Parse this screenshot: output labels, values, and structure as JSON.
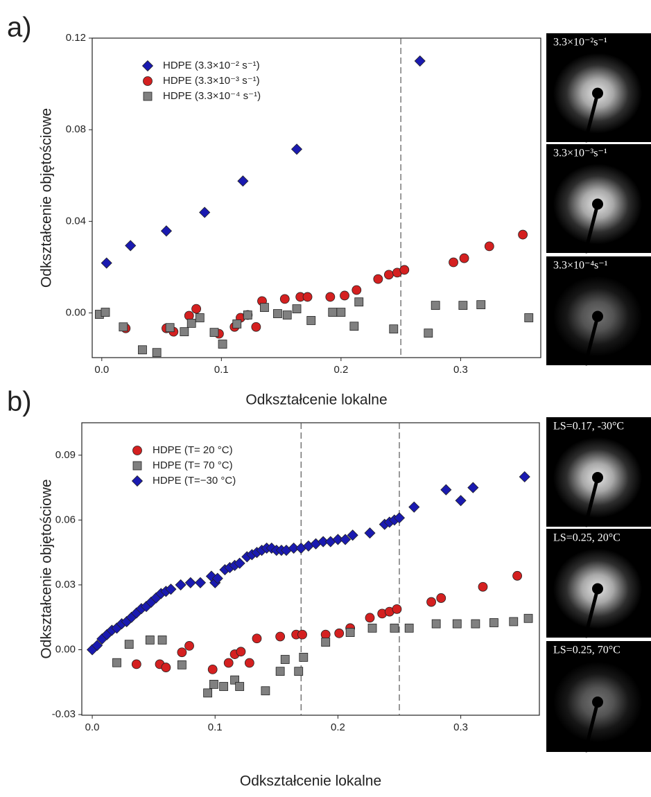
{
  "chart_data": [
    {
      "type": "scatter",
      "panel_label": "a)",
      "xlabel": "Odkształcenie lokalne",
      "ylabel": "Odkształcenie objętościowe",
      "xlim": [
        -0.008,
        0.367
      ],
      "ylim": [
        -0.0195,
        0.12
      ],
      "xticks": [
        {
          "value": 0,
          "label": "0.0"
        },
        0.1,
        0.2,
        0.3
      ],
      "yticks": [
        {
          "value": 0,
          "label": "0.00"
        },
        0.04,
        0.08,
        0.12
      ],
      "legend": "upper left",
      "vlines": [
        0.25
      ],
      "images": [
        "3.3×10⁻²s⁻¹",
        "3.3×10⁻³s⁻¹",
        "3.3×10⁻⁴s⁻¹"
      ],
      "series": [
        {
          "name": "HDPE (3.3×10⁻² s⁻¹)",
          "color": "#1a1ab0",
          "marker": "diamond",
          "x": [
            0.004,
            0.024,
            0.054,
            0.086,
            0.118,
            0.163,
            0.266
          ],
          "values": [
            0.0218,
            0.0294,
            0.0358,
            0.0439,
            0.0576,
            0.0715,
            0.11
          ]
        },
        {
          "name": "HDPE (3.3×10⁻³ s⁻¹)",
          "color": "#d42020",
          "marker": "circle",
          "x": [
            0.02,
            0.054,
            0.06,
            0.073,
            0.079,
            0.098,
            0.111,
            0.116,
            0.122,
            0.129,
            0.134,
            0.153,
            0.166,
            0.172,
            0.191,
            0.203,
            0.213,
            0.231,
            0.24,
            0.247,
            0.253,
            0.294,
            0.303,
            0.324,
            0.352
          ],
          "values": [
            -0.0067,
            -0.0067,
            -0.0082,
            -0.0012,
            0.0018,
            -0.0091,
            -0.0061,
            -0.0021,
            -0.0009,
            -0.0061,
            0.0052,
            0.0061,
            0.007,
            0.007,
            0.007,
            0.0076,
            0.01,
            0.0148,
            0.0167,
            0.0176,
            0.0188,
            0.0221,
            0.0239,
            0.0291,
            0.0342
          ]
        },
        {
          "name": "HDPE (3.3×10⁻⁴ s⁻¹)",
          "color": "#808080",
          "marker": "square",
          "x": [
            -0.002,
            0.003,
            0.018,
            0.034,
            0.046,
            0.057,
            0.069,
            0.075,
            0.082,
            0.094,
            0.101,
            0.113,
            0.122,
            0.136,
            0.147,
            0.155,
            0.163,
            0.175,
            0.193,
            0.2,
            0.211,
            0.215,
            0.244,
            0.273,
            0.279,
            0.302,
            0.317,
            0.357
          ],
          "values": [
            -0.0006,
            0.0003,
            -0.0061,
            -0.0161,
            -0.0173,
            -0.0064,
            -0.0082,
            -0.0045,
            -0.0021,
            -0.0085,
            -0.0136,
            -0.0048,
            -0.0009,
            0.0024,
            -0.0003,
            -0.0009,
            0.0018,
            -0.0033,
            0.0003,
            0.0003,
            -0.0058,
            0.0048,
            -0.007,
            -0.0088,
            0.0033,
            0.0033,
            0.0036,
            -0.0021
          ]
        }
      ]
    },
    {
      "type": "scatter",
      "panel_label": "b)",
      "xlabel": "Odkształcenie lokalne",
      "ylabel": "Odkształcenie objętościowe",
      "xlim": [
        -0.0085,
        0.364
      ],
      "ylim": [
        -0.0303,
        0.105
      ],
      "xticks": [
        {
          "value": 0,
          "label": "0.0"
        },
        0.1,
        0.2,
        0.3
      ],
      "yticks": [
        -0.03,
        {
          "value": 0,
          "label": "0.00"
        },
        0.03,
        0.06,
        0.09
      ],
      "legend": "upper left",
      "vlines": [
        0.17,
        0.25
      ],
      "images": [
        "LS=0.17, -30°C",
        "LS=0.25, 20°C",
        "LS=0.25, 70°C"
      ],
      "series": [
        {
          "name": "HDPE (T= 20 °C)",
          "color": "#d42020",
          "marker": "circle",
          "x": [
            0.036,
            0.055,
            0.06,
            0.073,
            0.079,
            0.098,
            0.111,
            0.116,
            0.121,
            0.128,
            0.134,
            0.153,
            0.166,
            0.171,
            0.19,
            0.201,
            0.21,
            0.226,
            0.236,
            0.242,
            0.248,
            0.276,
            0.284,
            0.318,
            0.346
          ],
          "values": [
            -0.0067,
            -0.0067,
            -0.0082,
            -0.0012,
            0.0018,
            -0.0091,
            -0.0061,
            -0.0021,
            -0.0009,
            -0.0061,
            0.0052,
            0.0061,
            0.007,
            0.007,
            0.007,
            0.0076,
            0.01,
            0.0148,
            0.0167,
            0.0176,
            0.0188,
            0.0221,
            0.0239,
            0.0291,
            0.0342
          ]
        },
        {
          "name": "HDPE (T= 70 °C)",
          "color": "#808080",
          "marker": "square",
          "x": [
            0.02,
            0.03,
            0.047,
            0.057,
            0.073,
            0.094,
            0.099,
            0.107,
            0.116,
            0.12,
            0.141,
            0.153,
            0.157,
            0.168,
            0.172,
            0.19,
            0.21,
            0.228,
            0.246,
            0.258,
            0.28,
            0.297,
            0.312,
            0.327,
            0.343,
            0.355
          ],
          "values": [
            -0.006,
            0.0025,
            0.0045,
            0.0045,
            -0.007,
            -0.02,
            -0.016,
            -0.017,
            -0.014,
            -0.017,
            -0.019,
            -0.01,
            -0.0045,
            -0.01,
            -0.0035,
            0.0035,
            0.008,
            0.01,
            0.01,
            0.01,
            0.012,
            0.012,
            0.012,
            0.0125,
            0.013,
            0.0145
          ]
        },
        {
          "name": "HDPE (T=−30 °C)",
          "color": "#1a1ab0",
          "marker": "diamond",
          "x": [
            0,
            0.004,
            0.008,
            0.012,
            0.016,
            0.02,
            0.024,
            0.028,
            0.032,
            0.036,
            0.04,
            0.044,
            0.048,
            0.052,
            0.056,
            0.06,
            0.064,
            0.072,
            0.08,
            0.088,
            0.097,
            0.1,
            0.102,
            0.108,
            0.112,
            0.116,
            0.12,
            0.126,
            0.13,
            0.134,
            0.138,
            0.142,
            0.146,
            0.15,
            0.154,
            0.158,
            0.164,
            0.17,
            0.176,
            0.182,
            0.188,
            0.194,
            0.2,
            0.206,
            0.212,
            0.226,
            0.238,
            0.242,
            0.246,
            0.25,
            0.262,
            0.288,
            0.3,
            0.31,
            0.352
          ],
          "values": [
            0,
            0.002,
            0.005,
            0.007,
            0.009,
            0.01,
            0.012,
            0.013,
            0.015,
            0.017,
            0.019,
            0.02,
            0.022,
            0.024,
            0.026,
            0.027,
            0.028,
            0.03,
            0.031,
            0.031,
            0.034,
            0.031,
            0.033,
            0.037,
            0.038,
            0.039,
            0.04,
            0.043,
            0.044,
            0.045,
            0.046,
            0.047,
            0.047,
            0.046,
            0.046,
            0.046,
            0.047,
            0.047,
            0.048,
            0.049,
            0.05,
            0.05,
            0.051,
            0.051,
            0.053,
            0.054,
            0.058,
            0.059,
            0.06,
            0.061,
            0.066,
            0.074,
            0.069,
            0.075,
            0.08
          ]
        }
      ]
    }
  ]
}
